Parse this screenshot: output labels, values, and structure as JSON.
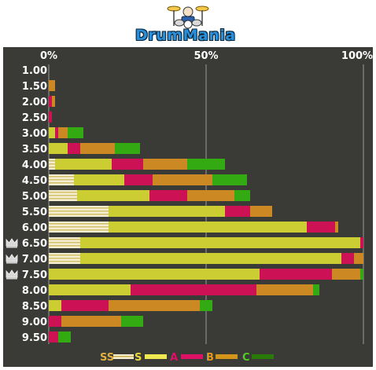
{
  "header": {
    "logo_text": "DrumMania",
    "logo_icon": "drum-kit-icon"
  },
  "chart_data": {
    "type": "bar",
    "orientation": "horizontal",
    "stacked": true,
    "percent_stacked": true,
    "x_ticks": [
      "0%",
      "50%",
      "100%"
    ],
    "xlim": [
      0,
      100
    ],
    "grid": true,
    "legend_placement": "bottom",
    "categories": [
      "1.00",
      "1.50",
      "2.00",
      "2.50",
      "3.00",
      "3.50",
      "4.00",
      "4.50",
      "5.00",
      "5.50",
      "6.00",
      "6.50",
      "7.00",
      "7.50",
      "8.00",
      "8.50",
      "9.00",
      "9.50"
    ],
    "crowned_levels": [
      "6.50",
      "7.00",
      "7.50"
    ],
    "series": [
      {
        "name": "SS",
        "color": "#f4eed0",
        "values": [
          0,
          0,
          0,
          0,
          0,
          0,
          2,
          8,
          9,
          19,
          19,
          10,
          10,
          0,
          0,
          0,
          0,
          0
        ]
      },
      {
        "name": "S",
        "color": "#cccc33",
        "values": [
          0,
          0,
          0,
          0,
          2,
          6,
          18,
          16,
          23,
          37,
          63,
          89,
          83,
          67,
          26,
          4,
          0,
          0
        ]
      },
      {
        "name": "A",
        "color": "#cc1155",
        "values": [
          0,
          0,
          1,
          1,
          1,
          4,
          10,
          9,
          12,
          8,
          9,
          1,
          4,
          23,
          40,
          15,
          4,
          3
        ]
      },
      {
        "name": "B",
        "color": "#cc8822",
        "values": [
          0,
          2,
          1,
          0,
          3,
          11,
          14,
          19,
          15,
          7,
          1,
          0,
          3,
          9,
          18,
          29,
          19,
          0
        ]
      },
      {
        "name": "C",
        "color": "#33aa11",
        "values": [
          0,
          0,
          0,
          0,
          5,
          8,
          12,
          11,
          5,
          0,
          0,
          0,
          0,
          1,
          2,
          4,
          7,
          4
        ]
      }
    ]
  }
}
